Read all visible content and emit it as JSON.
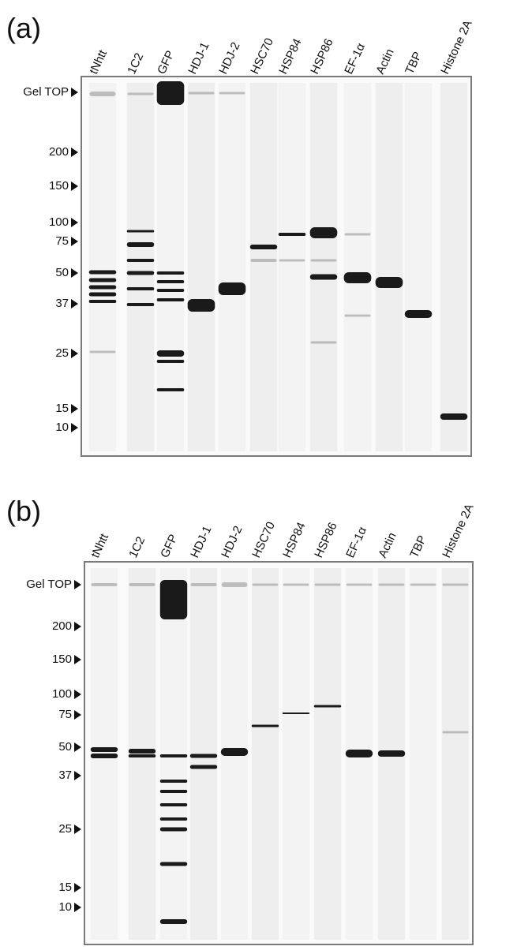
{
  "panels": [
    {
      "label": "(a)",
      "lanes": [
        "tNhtt",
        "1C2",
        "GFP",
        "HDJ-1",
        "HDJ-2",
        "HSC70",
        "HSP84",
        "HSP86",
        "EF-1α",
        "Actin",
        "TBP",
        "Histone 2A"
      ],
      "markers": [
        "Gel TOP",
        "200",
        "150",
        "100",
        "75",
        "50",
        "37",
        "25",
        "15",
        "10"
      ]
    },
    {
      "label": "(b)",
      "lanes": [
        "tNhtt",
        "1C2",
        "GFP",
        "HDJ-1",
        "HDJ-2",
        "HSC70",
        "HSP84",
        "HSP86",
        "EF-1α",
        "Actin",
        "TBP",
        "Histone 2A"
      ],
      "markers": [
        "Gel TOP",
        "200",
        "150",
        "100",
        "75",
        "50",
        "37",
        "25",
        "15",
        "10"
      ]
    }
  ]
}
